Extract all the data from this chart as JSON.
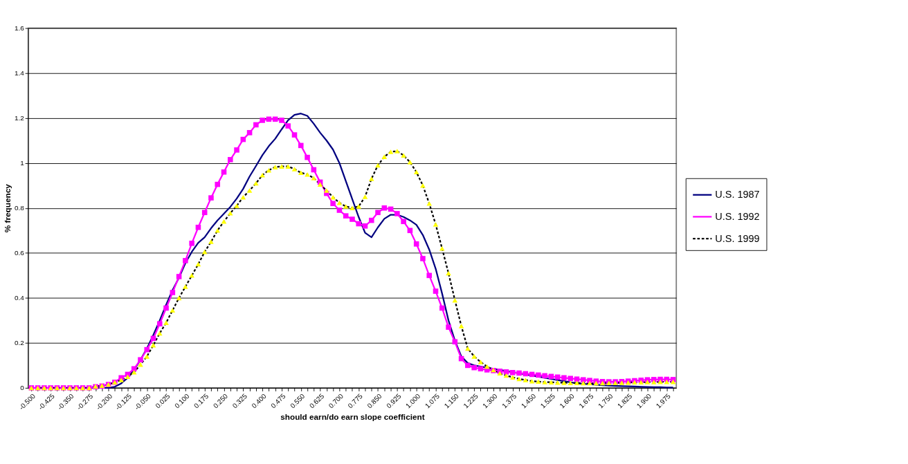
{
  "chart_data": {
    "type": "line",
    "xlabel": "should earn/do earn slope coefficient",
    "ylabel": "% frequency",
    "x": [
      -0.5,
      -0.475,
      -0.45,
      -0.425,
      -0.4,
      -0.375,
      -0.35,
      -0.325,
      -0.3,
      -0.275,
      -0.25,
      -0.225,
      -0.2,
      -0.175,
      -0.15,
      -0.125,
      -0.1,
      -0.075,
      -0.05,
      -0.025,
      0,
      0.025,
      0.05,
      0.075,
      0.1,
      0.125,
      0.15,
      0.175,
      0.2,
      0.225,
      0.25,
      0.275,
      0.3,
      0.325,
      0.35,
      0.375,
      0.4,
      0.425,
      0.45,
      0.475,
      0.5,
      0.525,
      0.55,
      0.575,
      0.6,
      0.625,
      0.65,
      0.675,
      0.7,
      0.725,
      0.75,
      0.775,
      0.8,
      0.825,
      0.85,
      0.875,
      0.9,
      0.925,
      0.95,
      0.975,
      1,
      1.025,
      1.05,
      1.075,
      1.1,
      1.125,
      1.15,
      1.175,
      1.2,
      1.225,
      1.25,
      1.275,
      1.3,
      1.325,
      1.35,
      1.375,
      1.4,
      1.425,
      1.45,
      1.475,
      1.5,
      1.525,
      1.55,
      1.575,
      1.6,
      1.625,
      1.65,
      1.675,
      1.7,
      1.725,
      1.75,
      1.775,
      1.8,
      1.825,
      1.85,
      1.875,
      1.9,
      1.925,
      1.95,
      1.975,
      2
    ],
    "xlim": [
      -0.5125,
      2.0125
    ],
    "xticks": [
      {
        "value": -0.5,
        "label": "-0.500"
      },
      {
        "value": -0.475,
        "label": null
      },
      {
        "value": -0.45,
        "label": null
      },
      {
        "value": -0.425,
        "label": "-0.425"
      },
      {
        "value": -0.4,
        "label": null
      },
      {
        "value": -0.375,
        "label": null
      },
      {
        "value": -0.35,
        "label": "-0.350"
      },
      {
        "value": -0.325,
        "label": null
      },
      {
        "value": -0.3,
        "label": null
      },
      {
        "value": -0.275,
        "label": "-0.275"
      },
      {
        "value": -0.25,
        "label": null
      },
      {
        "value": -0.225,
        "label": null
      },
      {
        "value": -0.2,
        "label": "-0.200"
      },
      {
        "value": -0.175,
        "label": null
      },
      {
        "value": -0.15,
        "label": null
      },
      {
        "value": -0.125,
        "label": "-0.125"
      },
      {
        "value": -0.1,
        "label": null
      },
      {
        "value": -0.075,
        "label": null
      },
      {
        "value": -0.05,
        "label": "-0.050"
      },
      {
        "value": -0.025,
        "label": null
      },
      {
        "value": 0,
        "label": null
      },
      {
        "value": 0.025,
        "label": "0.025"
      },
      {
        "value": 0.05,
        "label": null
      },
      {
        "value": 0.075,
        "label": null
      },
      {
        "value": 0.1,
        "label": "0.100"
      },
      {
        "value": 0.125,
        "label": null
      },
      {
        "value": 0.15,
        "label": null
      },
      {
        "value": 0.175,
        "label": "0.175"
      },
      {
        "value": 0.2,
        "label": null
      },
      {
        "value": 0.225,
        "label": null
      },
      {
        "value": 0.25,
        "label": "0.250"
      },
      {
        "value": 0.275,
        "label": null
      },
      {
        "value": 0.3,
        "label": null
      },
      {
        "value": 0.325,
        "label": "0.325"
      },
      {
        "value": 0.35,
        "label": null
      },
      {
        "value": 0.375,
        "label": null
      },
      {
        "value": 0.4,
        "label": "0.400"
      },
      {
        "value": 0.425,
        "label": null
      },
      {
        "value": 0.45,
        "label": null
      },
      {
        "value": 0.475,
        "label": "0.475"
      },
      {
        "value": 0.5,
        "label": null
      },
      {
        "value": 0.525,
        "label": null
      },
      {
        "value": 0.55,
        "label": "0.550"
      },
      {
        "value": 0.575,
        "label": null
      },
      {
        "value": 0.6,
        "label": null
      },
      {
        "value": 0.625,
        "label": "0.625"
      },
      {
        "value": 0.65,
        "label": null
      },
      {
        "value": 0.675,
        "label": null
      },
      {
        "value": 0.7,
        "label": "0.700"
      },
      {
        "value": 0.725,
        "label": null
      },
      {
        "value": 0.75,
        "label": null
      },
      {
        "value": 0.775,
        "label": "0.775"
      },
      {
        "value": 0.8,
        "label": null
      },
      {
        "value": 0.825,
        "label": null
      },
      {
        "value": 0.85,
        "label": "0.850"
      },
      {
        "value": 0.875,
        "label": null
      },
      {
        "value": 0.9,
        "label": null
      },
      {
        "value": 0.925,
        "label": "0.925"
      },
      {
        "value": 0.95,
        "label": null
      },
      {
        "value": 0.975,
        "label": null
      },
      {
        "value": 1,
        "label": "1.000"
      },
      {
        "value": 1.025,
        "label": null
      },
      {
        "value": 1.05,
        "label": null
      },
      {
        "value": 1.075,
        "label": "1.075"
      },
      {
        "value": 1.1,
        "label": null
      },
      {
        "value": 1.125,
        "label": null
      },
      {
        "value": 1.15,
        "label": "1.150"
      },
      {
        "value": 1.175,
        "label": null
      },
      {
        "value": 1.2,
        "label": null
      },
      {
        "value": 1.225,
        "label": "1.225"
      },
      {
        "value": 1.25,
        "label": null
      },
      {
        "value": 1.275,
        "label": null
      },
      {
        "value": 1.3,
        "label": "1.300"
      },
      {
        "value": 1.325,
        "label": null
      },
      {
        "value": 1.35,
        "label": null
      },
      {
        "value": 1.375,
        "label": "1.375"
      },
      {
        "value": 1.4,
        "label": null
      },
      {
        "value": 1.425,
        "label": null
      },
      {
        "value": 1.45,
        "label": "1.450"
      },
      {
        "value": 1.475,
        "label": null
      },
      {
        "value": 1.5,
        "label": null
      },
      {
        "value": 1.525,
        "label": "1.525"
      },
      {
        "value": 1.55,
        "label": null
      },
      {
        "value": 1.575,
        "label": null
      },
      {
        "value": 1.6,
        "label": "1.600"
      },
      {
        "value": 1.625,
        "label": null
      },
      {
        "value": 1.65,
        "label": null
      },
      {
        "value": 1.675,
        "label": "1.675"
      },
      {
        "value": 1.7,
        "label": null
      },
      {
        "value": 1.725,
        "label": null
      },
      {
        "value": 1.75,
        "label": "1.750"
      },
      {
        "value": 1.775,
        "label": null
      },
      {
        "value": 1.8,
        "label": null
      },
      {
        "value": 1.825,
        "label": "1.825"
      },
      {
        "value": 1.85,
        "label": null
      },
      {
        "value": 1.875,
        "label": null
      },
      {
        "value": 1.9,
        "label": "1.900"
      },
      {
        "value": 1.925,
        "label": null
      },
      {
        "value": 1.95,
        "label": null
      },
      {
        "value": 1.975,
        "label": "1.975"
      },
      {
        "value": 2,
        "label": null
      }
    ],
    "ylim": [
      0,
      1.6
    ],
    "yticks": [
      0,
      0.2,
      0.4,
      0.6,
      0.8,
      1,
      1.2,
      1.4,
      1.6
    ],
    "grid": "y",
    "legend": "right",
    "series": [
      {
        "name": "U.S. 1987",
        "color": "#000080",
        "marker": "none",
        "line_style": "solid",
        "values": [
          null,
          null,
          null,
          null,
          null,
          null,
          null,
          null,
          null,
          0,
          0,
          0,
          0,
          0.005,
          0.02,
          0.045,
          0.08,
          0.125,
          0.175,
          0.235,
          0.3,
          0.37,
          0.435,
          0.49,
          0.555,
          0.605,
          0.645,
          0.67,
          0.71,
          0.745,
          0.775,
          0.805,
          0.842,
          0.885,
          0.94,
          0.987,
          1.035,
          1.075,
          1.108,
          1.15,
          1.19,
          1.214,
          1.22,
          1.21,
          1.175,
          1.135,
          1.1,
          1.06,
          1.0,
          0.92,
          0.84,
          0.76,
          0.69,
          0.67,
          0.714,
          0.752,
          0.77,
          0.77,
          0.76,
          0.745,
          0.725,
          0.68,
          0.615,
          0.53,
          0.42,
          0.3,
          0.21,
          0.14,
          0.11,
          0.1,
          0.095,
          0.09,
          0.085,
          0.08,
          0.075,
          0.07,
          0.065,
          0.06,
          0.055,
          0.05,
          0.045,
          0.04,
          0.035,
          0.03,
          0.025,
          0.02,
          0.018,
          0.016,
          0.014,
          0.012,
          0.01,
          0.009,
          0.008,
          0.007,
          0.006,
          0.005,
          0.004,
          0.003,
          0.003,
          0.002,
          0.002
        ]
      },
      {
        "name": "U.S. 1992",
        "color": "#ff00ff",
        "marker": "square",
        "line_style": "solid",
        "values": [
          0,
          0,
          0,
          0,
          0,
          0,
          0,
          0,
          0,
          0,
          0.005,
          0.008,
          0.015,
          0.025,
          0.045,
          0.06,
          0.085,
          0.125,
          0.17,
          0.22,
          0.285,
          0.355,
          0.424,
          0.495,
          0.566,
          0.643,
          0.714,
          0.78,
          0.845,
          0.905,
          0.96,
          1.015,
          1.058,
          1.105,
          1.135,
          1.17,
          1.19,
          1.195,
          1.195,
          1.19,
          1.165,
          1.125,
          1.078,
          1.025,
          0.97,
          0.915,
          0.865,
          0.82,
          0.79,
          0.765,
          0.75,
          0.73,
          0.72,
          0.745,
          0.78,
          0.8,
          0.795,
          0.775,
          0.74,
          0.7,
          0.64,
          0.575,
          0.5,
          0.43,
          0.355,
          0.27,
          0.205,
          0.13,
          0.1,
          0.09,
          0.085,
          0.08,
          0.077,
          0.074,
          0.071,
          0.068,
          0.066,
          0.063,
          0.06,
          0.057,
          0.054,
          0.051,
          0.048,
          0.045,
          0.042,
          0.039,
          0.036,
          0.033,
          0.03,
          0.028,
          0.027,
          0.027,
          0.028,
          0.03,
          0.032,
          0.034,
          0.036,
          0.037,
          0.038,
          0.038,
          0.037
        ]
      },
      {
        "name": "U.S. 1999",
        "color": "#000000",
        "colors": [
          "#ffff00",
          "#ffff00",
          "#ffff00",
          "#ffff00",
          "#ffff00",
          "#ffff00",
          "#ffff00",
          "#ffff00",
          "#ffff00",
          "#ffff00",
          "#ffff00",
          "#ffff00",
          "#ffff00",
          "#ffff00",
          "#ffff00",
          "#ffff00",
          "#ffff00",
          "#ffff00",
          "#ffff00",
          "#ffff00",
          "#ffff00",
          "#ffff00",
          "#ffff00",
          "#ffff00",
          "#ffff00",
          "#ffff00",
          "#ffff00",
          "#ffff00",
          "#ffff00",
          "#ffff00",
          "#ffff00",
          "#ffff00",
          "#ffff00",
          "#ffff00",
          "#ffff00",
          "#ffff00",
          "#ffff00",
          "#ffff00",
          "#ffff00",
          "#ffff00",
          "#ffff00",
          "#ffff00",
          "#ffff00",
          "#ffff00",
          "#ffff00",
          "#ffff00",
          "#ffff00",
          "#ffff00",
          "#ffff00",
          "#ffff00",
          "#ffff00",
          "#ffff00",
          "#ffff00",
          "#ffff00",
          "#ffff00",
          "#ffff00",
          "#ffff00",
          "#ffff00",
          "#ffff00",
          "#ffff00",
          "#ffff00",
          "#ffff00",
          "#ffff00",
          "#ffff00",
          "#ffff00",
          "#ffff00",
          "#ffff00",
          "#ffff00",
          "#ffff00",
          "#ffff00",
          "#ffff00",
          "#ffff00",
          "#ffff00",
          "#ffff00",
          "#ffff00",
          "#ffff00",
          "#ffff00",
          "#ffff00",
          "#ffff00",
          "#ffff00",
          "#ffff00",
          "#ffff00",
          "#ffff00",
          "#ffff00",
          "#ffff00",
          "#ffff00",
          "#ffff00",
          "#ffff00",
          "#ffff00",
          "#ffff00",
          "#ffff00",
          "#ffff00",
          "#ffff00",
          "#ffff00",
          "#ffff00",
          "#ffff00",
          "#ffff00",
          "#ffff00",
          "#ffff00",
          "#ffff00",
          "#ffff00"
        ],
        "marker": "triangle",
        "line_style": "dashed",
        "values": [
          0,
          0,
          0,
          0,
          0,
          0,
          0,
          0,
          0,
          0,
          0.007,
          0.01,
          0.015,
          0.025,
          0.035,
          0.05,
          0.07,
          0.104,
          0.14,
          0.19,
          0.243,
          0.29,
          0.345,
          0.4,
          0.45,
          0.5,
          0.55,
          0.605,
          0.65,
          0.7,
          0.74,
          0.777,
          0.81,
          0.848,
          0.878,
          0.91,
          0.946,
          0.968,
          0.982,
          0.985,
          0.985,
          0.973,
          0.957,
          0.949,
          0.933,
          0.905,
          0.878,
          0.848,
          0.823,
          0.807,
          0.8,
          0.807,
          0.85,
          0.93,
          0.99,
          1.028,
          1.05,
          1.053,
          1.034,
          1.004,
          0.96,
          0.9,
          0.82,
          0.727,
          0.62,
          0.51,
          0.39,
          0.275,
          0.175,
          0.14,
          0.115,
          0.095,
          0.08,
          0.065,
          0.055,
          0.047,
          0.04,
          0.035,
          0.03,
          0.028,
          0.026,
          0.025,
          0.024,
          0.023,
          0.022,
          0.022,
          0.021,
          0.021,
          0.021,
          0.021,
          0.022,
          0.022,
          0.023,
          0.024,
          0.025,
          0.025,
          0.026,
          0.026,
          0.027,
          0.027,
          0.027
        ]
      }
    ]
  }
}
